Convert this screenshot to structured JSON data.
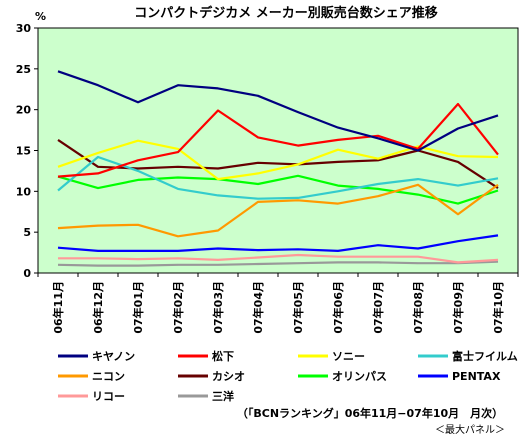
{
  "chart_data": {
    "type": "line",
    "title": "コンパクトデジカメ メーカー別販売台数シェア推移",
    "unit_label": "%",
    "categories": [
      "06年11月",
      "06年12月",
      "07年01月",
      "07年02月",
      "07年03月",
      "07年04月",
      "07年05月",
      "07年06月",
      "07年07月",
      "07年08月",
      "07年09月",
      "07年10月"
    ],
    "ylim": [
      0,
      30
    ],
    "yticks": [
      0,
      5,
      10,
      15,
      20,
      25,
      30
    ],
    "grid": false,
    "plot_background": "#ccffcc",
    "legend_position": "bottom",
    "series": [
      {
        "name": "キヤノン",
        "color": "#000080",
        "values": [
          24.7,
          23.0,
          20.9,
          23.0,
          22.6,
          21.7,
          19.7,
          17.8,
          16.5,
          15.0,
          17.7,
          19.3
        ]
      },
      {
        "name": "松下",
        "color": "#ff0000",
        "values": [
          11.8,
          12.2,
          13.8,
          14.8,
          19.9,
          16.6,
          15.6,
          16.3,
          16.8,
          15.2,
          20.7,
          14.5
        ]
      },
      {
        "name": "ソニー",
        "color": "#ffff00",
        "values": [
          13.0,
          14.7,
          16.2,
          15.2,
          11.5,
          12.2,
          13.3,
          15.1,
          14.0,
          15.5,
          14.3,
          14.2
        ]
      },
      {
        "name": "富士フイルム",
        "color": "#33cccc",
        "values": [
          10.1,
          14.2,
          12.5,
          10.3,
          9.5,
          9.1,
          9.2,
          10.0,
          10.9,
          11.5,
          10.7,
          11.6
        ]
      },
      {
        "name": "ニコン",
        "color": "#ff9900",
        "values": [
          5.5,
          5.8,
          5.9,
          4.5,
          5.2,
          8.7,
          8.9,
          8.5,
          9.4,
          10.8,
          7.2,
          10.8
        ]
      },
      {
        "name": "カシオ",
        "color": "#660000",
        "values": [
          16.3,
          13.0,
          12.8,
          13.0,
          12.8,
          13.5,
          13.3,
          13.6,
          13.8,
          15.0,
          13.6,
          10.4
        ]
      },
      {
        "name": "オリンパス",
        "color": "#00ff00",
        "values": [
          11.8,
          10.4,
          11.4,
          11.7,
          11.5,
          10.9,
          11.9,
          10.7,
          10.3,
          9.6,
          8.5,
          10.1
        ]
      },
      {
        "name": "PENTAX",
        "color": "#0000ff",
        "values": [
          3.1,
          2.7,
          2.7,
          2.7,
          3.0,
          2.8,
          2.9,
          2.7,
          3.4,
          3.0,
          3.9,
          4.6
        ]
      },
      {
        "name": "リコー",
        "color": "#ff9999",
        "values": [
          1.8,
          1.8,
          1.7,
          1.8,
          1.6,
          1.9,
          2.2,
          2.0,
          2.0,
          2.0,
          1.3,
          1.6
        ]
      },
      {
        "name": "三洋",
        "color": "#999999",
        "values": [
          1.0,
          0.9,
          0.9,
          1.0,
          1.0,
          1.1,
          1.2,
          1.3,
          1.3,
          1.2,
          1.2,
          1.4
        ]
      }
    ],
    "source_note": "（「BCNランキング」06年11月−07年10月　月次）",
    "panel_note": "＜最大パネル＞"
  }
}
